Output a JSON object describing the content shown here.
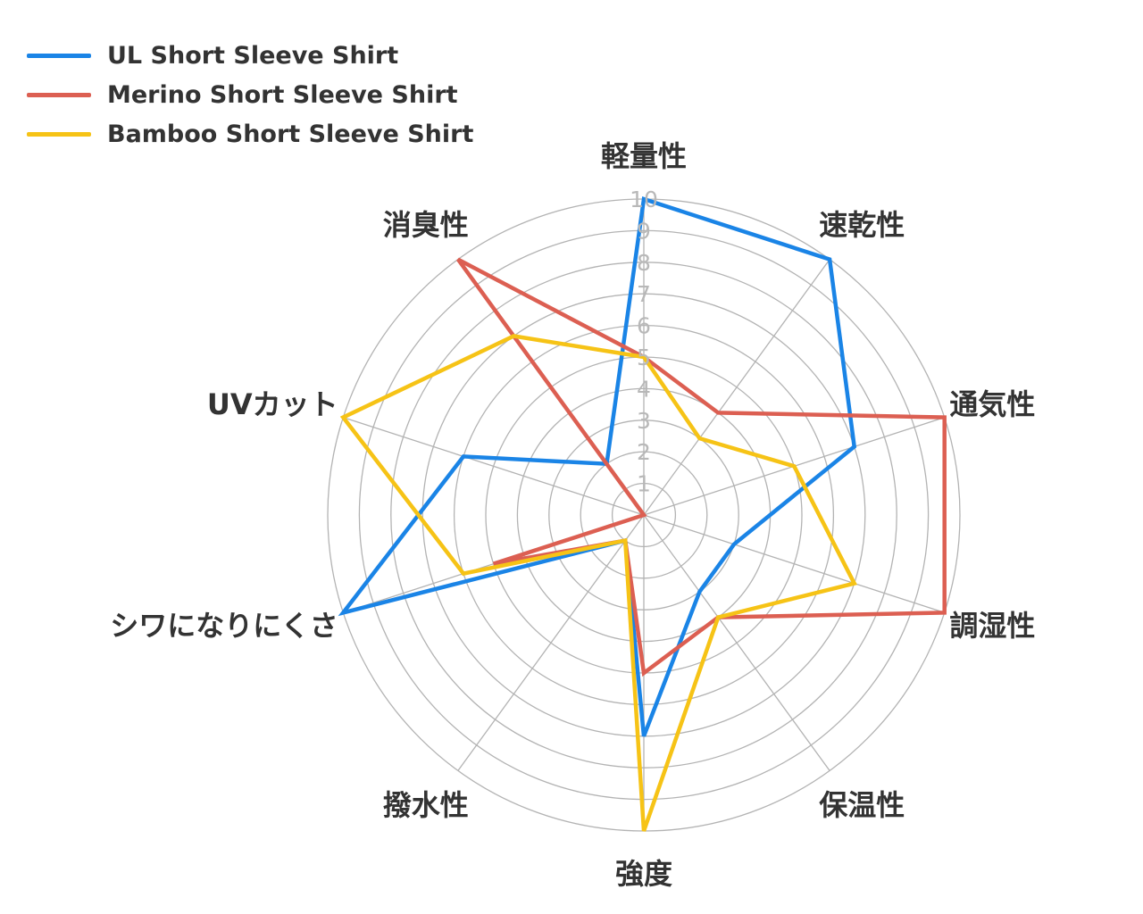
{
  "chart_data": {
    "type": "radar",
    "title": "",
    "axes": [
      "軽量性",
      "速乾性",
      "通気性",
      "調湿性",
      "保温性",
      "強度",
      "撥水性",
      "シワになりにくさ",
      "UVカット",
      "消臭性"
    ],
    "rlim": [
      0,
      10
    ],
    "ticks": [
      "1",
      "2",
      "3",
      "4",
      "5",
      "6",
      "7",
      "8",
      "9",
      "10"
    ],
    "grid": true,
    "legend_position": "top-left",
    "series": [
      {
        "name": "UL Short Sleeve Shirt",
        "color": "#1a84e6",
        "values": [
          10,
          10,
          7,
          3,
          3,
          7,
          1,
          10,
          6,
          2
        ]
      },
      {
        "name": "Merino Short Sleeve Shirt",
        "color": "#dc5f52",
        "values": [
          5,
          4,
          10,
          10,
          4,
          5,
          1,
          5,
          0,
          10
        ]
      },
      {
        "name": "Bamboo Short Sleeve Shirt",
        "color": "#f6c316",
        "values": [
          5,
          3,
          5,
          7,
          4,
          10,
          1,
          6,
          10,
          7
        ]
      }
    ]
  }
}
